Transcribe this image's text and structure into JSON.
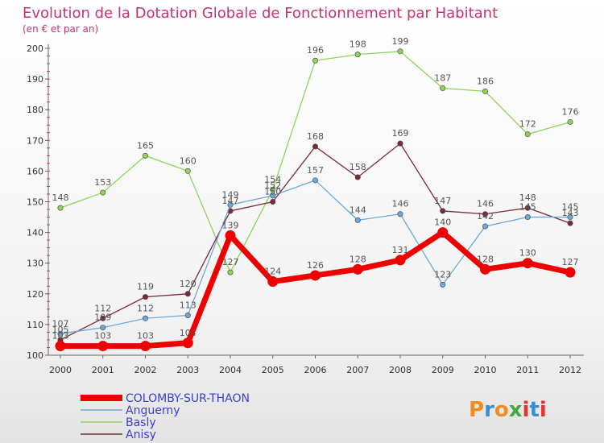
{
  "chart_data": {
    "type": "line",
    "title": "Evolution de la Dotation Globale de Fonctionnement par Habitant",
    "subtitle": "(en € et par an)",
    "xlabel": "",
    "ylabel": "",
    "ylim": [
      100,
      200
    ],
    "yticks": [
      100,
      110,
      120,
      130,
      140,
      150,
      160,
      170,
      180,
      190,
      200
    ],
    "categories": [
      "2000",
      "2001",
      "2002",
      "2003",
      "2004",
      "2005",
      "2006",
      "2007",
      "2008",
      "2009",
      "2010",
      "2011",
      "2012"
    ],
    "grid": false,
    "legend_position": "bottom-left",
    "series": [
      {
        "name": "Basly",
        "color": "#8fd45a",
        "values": [
          148,
          153,
          165,
          160,
          127,
          154,
          196,
          198,
          199,
          187,
          186,
          172,
          176
        ]
      },
      {
        "name": "Anisy",
        "color": "#7a2a36",
        "values": [
          105,
          112,
          119,
          120,
          147,
          150,
          168,
          158,
          169,
          147,
          146,
          148,
          143
        ]
      },
      {
        "name": "Anguerny",
        "color": "#6ea8d8",
        "values": [
          107,
          109,
          112,
          113,
          149,
          152,
          157,
          144,
          146,
          123,
          142,
          145,
          145
        ]
      },
      {
        "name": "COLOMBY-SUR-THAON",
        "color": "#ee0000",
        "values": [
          103,
          103,
          103,
          104,
          139,
          124,
          126,
          128,
          131,
          140,
          128,
          130,
          127
        ],
        "labeled": true
      }
    ],
    "data_labels": {
      "Basly": [
        "148",
        "153",
        "165",
        "160",
        "127",
        "154",
        "196",
        "198",
        "199",
        "187",
        "186",
        "172",
        "176"
      ],
      "Anisy": [
        "105",
        "112",
        "119",
        "120",
        "147",
        "150",
        "168",
        "158",
        "169",
        "147",
        "146",
        "148",
        "143"
      ],
      "Anguerny": [
        "107",
        "109",
        "112",
        "113",
        "149",
        "152",
        "157",
        "144",
        "146",
        "123",
        "142",
        "145",
        "145"
      ],
      "COLOMBY-SUR-THAON": [
        "103",
        "103",
        "103",
        "104",
        "139",
        "124",
        "126",
        "128",
        "131",
        "140",
        "128",
        "130",
        "127"
      ]
    },
    "legend": [
      {
        "name": "COLOMBY-SUR-THAON",
        "color": "#ee0000"
      },
      {
        "name": "Anguerny",
        "color": "#6ea8d8"
      },
      {
        "name": "Basly",
        "color": "#8fd45a"
      },
      {
        "name": "Anisy",
        "color": "#7a2a36"
      }
    ]
  },
  "branding": {
    "logo_letters": [
      "P",
      "r",
      "o",
      "x",
      "i",
      "t",
      "i"
    ],
    "logo_colors": [
      "#f28c1c",
      "#3a8fd0",
      "#f28c1c",
      "#46a83c",
      "#e3342f",
      "#3a8fd0",
      "#e3342f"
    ]
  },
  "colors": {
    "title": "#c2366f",
    "legend_text": "#3b3bd9",
    "axis": "#555555"
  }
}
